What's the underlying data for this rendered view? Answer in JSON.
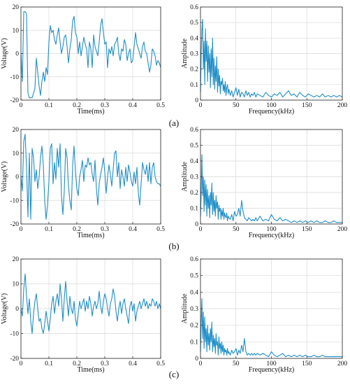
{
  "panel_labels": [
    "(a)",
    "(b)",
    "(c)"
  ],
  "colors": {
    "line": "#1f8ec7",
    "axis": "#222222",
    "grid": "#d9d9d9"
  },
  "chart_data": [
    {
      "type": "line",
      "row": 0,
      "side": "time",
      "xlabel": "Time(ms)",
      "ylabel": "Voltage(V)",
      "xlim": [
        0,
        0.5
      ],
      "ylim": [
        -20,
        20
      ],
      "xticks": [
        0,
        0.1,
        0.2,
        0.3,
        0.4,
        0.5
      ],
      "xtick_labels": [
        "0",
        "0.1",
        "0.2",
        "0.3",
        "0.4",
        "0.5"
      ],
      "yticks": [
        -20,
        -10,
        0,
        10,
        20
      ],
      "ytick_labels": [
        "-20",
        "-10",
        "0",
        "10",
        "20"
      ],
      "grid": true,
      "x": [
        0,
        0.005,
        0.01,
        0.015,
        0.02,
        0.025,
        0.03,
        0.04,
        0.05,
        0.055,
        0.06,
        0.065,
        0.07,
        0.075,
        0.08,
        0.085,
        0.09,
        0.095,
        0.1,
        0.105,
        0.11,
        0.115,
        0.12,
        0.125,
        0.13,
        0.135,
        0.14,
        0.145,
        0.15,
        0.155,
        0.16,
        0.165,
        0.17,
        0.175,
        0.18,
        0.185,
        0.19,
        0.195,
        0.2,
        0.205,
        0.21,
        0.215,
        0.22,
        0.225,
        0.23,
        0.235,
        0.24,
        0.245,
        0.25,
        0.255,
        0.26,
        0.265,
        0.27,
        0.275,
        0.28,
        0.285,
        0.29,
        0.295,
        0.3,
        0.305,
        0.31,
        0.315,
        0.32,
        0.325,
        0.33,
        0.335,
        0.34,
        0.345,
        0.35,
        0.355,
        0.36,
        0.365,
        0.37,
        0.375,
        0.38,
        0.385,
        0.39,
        0.395,
        0.4,
        0.405,
        0.41,
        0.415,
        0.42,
        0.425,
        0.43,
        0.435,
        0.44,
        0.445,
        0.45,
        0.455,
        0.46,
        0.465,
        0.47,
        0.475,
        0.48,
        0.485,
        0.49,
        0.495,
        0.5
      ],
      "y": [
        0,
        -12,
        18,
        18,
        17,
        -17,
        -19,
        -19,
        -15,
        -2,
        -8,
        -14,
        -18,
        -12,
        -8,
        -12,
        -6,
        -9,
        5,
        12,
        9,
        10,
        6,
        4,
        8,
        11,
        5,
        0,
        3,
        7,
        8,
        3,
        -4,
        2,
        6,
        14,
        16,
        9,
        7,
        0,
        5,
        -1,
        3,
        7,
        4,
        2,
        -6,
        5,
        2,
        -6,
        8,
        3,
        1,
        -1,
        5,
        12,
        15,
        9,
        4,
        5,
        -6,
        2,
        0,
        3,
        -1,
        4,
        5,
        7,
        0,
        -3,
        2,
        1,
        6,
        4,
        -3,
        0,
        2,
        -4,
        -3,
        3,
        9,
        4,
        2,
        0,
        -2,
        3,
        5,
        1,
        0,
        -4,
        -8,
        -5,
        2,
        1,
        -1,
        -5,
        -3,
        -4,
        -6
      ]
    },
    {
      "type": "line",
      "row": 0,
      "side": "freq",
      "xlabel": "Frequency(kHz)",
      "ylabel": "Amplitude",
      "xlim": [
        0,
        200
      ],
      "ylim": [
        0,
        0.6
      ],
      "xticks": [
        0,
        50,
        100,
        150,
        200
      ],
      "xtick_labels": [
        "0",
        "50",
        "100",
        "150",
        "200"
      ],
      "yticks": [
        0,
        0.1,
        0.2,
        0.3,
        0.4,
        0.5,
        0.6
      ],
      "ytick_labels": [
        "0",
        "0.1",
        "0.2",
        "0.3",
        "0.4",
        "0.5",
        "0.6"
      ],
      "grid": true,
      "x": [
        0,
        1,
        2,
        3,
        4,
        5,
        6,
        7,
        8,
        9,
        10,
        11,
        12,
        13,
        14,
        15,
        16,
        17,
        18,
        19,
        20,
        21,
        22,
        23,
        24,
        25,
        26,
        27,
        28,
        29,
        30,
        31,
        32,
        33,
        34,
        35,
        36,
        37,
        38,
        39,
        40,
        42,
        44,
        46,
        48,
        50,
        52,
        54,
        56,
        58,
        60,
        62,
        64,
        66,
        68,
        70,
        72,
        74,
        76,
        78,
        80,
        84,
        88,
        92,
        96,
        100,
        104,
        108,
        112,
        116,
        120,
        124,
        128,
        132,
        136,
        140,
        144,
        148,
        152,
        156,
        160,
        164,
        168,
        172,
        176,
        180,
        184,
        188,
        192,
        196,
        200
      ],
      "y": [
        0.05,
        0.3,
        0.45,
        0.52,
        0.2,
        0.38,
        0.1,
        0.46,
        0.25,
        0.38,
        0.12,
        0.35,
        0.18,
        0.3,
        0.08,
        0.33,
        0.15,
        0.4,
        0.1,
        0.27,
        0.07,
        0.22,
        0.12,
        0.28,
        0.05,
        0.2,
        0.09,
        0.16,
        0.04,
        0.12,
        0.1,
        0.14,
        0.06,
        0.1,
        0.05,
        0.12,
        0.03,
        0.08,
        0.1,
        0.04,
        0.07,
        0.03,
        0.06,
        0.02,
        0.05,
        0.08,
        0.03,
        0.07,
        0.02,
        0.05,
        0.04,
        0.02,
        0.06,
        0.03,
        0.05,
        0.02,
        0.04,
        0.03,
        0.05,
        0.02,
        0.04,
        0.03,
        0.02,
        0.05,
        0.03,
        0.02,
        0.04,
        0.03,
        0.05,
        0.02,
        0.04,
        0.06,
        0.03,
        0.04,
        0.02,
        0.05,
        0.03,
        0.02,
        0.04,
        0.03,
        0.02,
        0.03,
        0.02,
        0.04,
        0.02,
        0.03,
        0.02,
        0.03,
        0.02,
        0.03,
        0.02
      ]
    },
    {
      "type": "line",
      "row": 1,
      "side": "time",
      "xlabel": "Time(ms)",
      "ylabel": "Voltage(V)",
      "xlim": [
        0,
        0.5
      ],
      "ylim": [
        -20,
        20
      ],
      "xticks": [
        0,
        0.1,
        0.2,
        0.3,
        0.4,
        0.5
      ],
      "xtick_labels": [
        "0",
        "0.1",
        "0.2",
        "0.3",
        "0.4",
        "0.5"
      ],
      "yticks": [
        -20,
        -10,
        0,
        10,
        20
      ],
      "ytick_labels": [
        "-20",
        "-10",
        "0",
        "10",
        "20"
      ],
      "grid": true,
      "x": [
        0,
        0.005,
        0.01,
        0.015,
        0.02,
        0.025,
        0.03,
        0.035,
        0.04,
        0.045,
        0.05,
        0.055,
        0.06,
        0.065,
        0.07,
        0.075,
        0.08,
        0.085,
        0.09,
        0.095,
        0.1,
        0.105,
        0.11,
        0.115,
        0.12,
        0.125,
        0.13,
        0.135,
        0.14,
        0.145,
        0.15,
        0.155,
        0.16,
        0.165,
        0.17,
        0.175,
        0.18,
        0.185,
        0.19,
        0.195,
        0.2,
        0.205,
        0.21,
        0.215,
        0.22,
        0.225,
        0.23,
        0.235,
        0.24,
        0.245,
        0.25,
        0.255,
        0.26,
        0.265,
        0.27,
        0.275,
        0.28,
        0.285,
        0.29,
        0.295,
        0.3,
        0.305,
        0.31,
        0.315,
        0.32,
        0.325,
        0.33,
        0.335,
        0.34,
        0.345,
        0.35,
        0.355,
        0.36,
        0.365,
        0.37,
        0.375,
        0.38,
        0.385,
        0.39,
        0.395,
        0.4,
        0.405,
        0.41,
        0.415,
        0.42,
        0.425,
        0.43,
        0.435,
        0.44,
        0.445,
        0.45,
        0.455,
        0.46,
        0.465,
        0.47,
        0.475,
        0.48,
        0.485,
        0.49,
        0.495,
        0.5
      ],
      "y": [
        0,
        -6,
        15,
        18,
        4,
        -17,
        10,
        -18,
        12,
        8,
        -2,
        3,
        -5,
        0,
        8,
        13,
        5,
        -10,
        -18,
        -12,
        -2,
        12,
        14,
        -3,
        6,
        -1,
        12,
        4,
        14,
        -8,
        -16,
        -6,
        12,
        8,
        -4,
        -10,
        -14,
        5,
        13,
        2,
        -5,
        -8,
        0,
        3,
        7,
        -2,
        5,
        4,
        8,
        5,
        6,
        1,
        -2,
        7,
        -5,
        -12,
        -3,
        1,
        4,
        8,
        2,
        -7,
        0,
        5,
        1,
        -4,
        3,
        10,
        11,
        0,
        6,
        -5,
        3,
        0,
        -4,
        4,
        -2,
        5,
        2,
        -2,
        -4,
        2,
        -3,
        4,
        -7,
        -12,
        -3,
        6,
        3,
        1,
        5,
        -2,
        6,
        -3,
        4,
        6,
        0,
        -2,
        -3,
        -3,
        -4
      ]
    },
    {
      "type": "line",
      "row": 1,
      "side": "freq",
      "xlabel": "Frequency(kHz)",
      "ylabel": "Amplitude",
      "xlim": [
        0,
        200
      ],
      "ylim": [
        0,
        0.6
      ],
      "xticks": [
        0,
        50,
        100,
        150,
        200
      ],
      "xtick_labels": [
        "0",
        "50",
        "100",
        "150",
        "200"
      ],
      "yticks": [
        0,
        0.1,
        0.2,
        0.3,
        0.4,
        0.5,
        0.6
      ],
      "ytick_labels": [
        "0",
        "0.1",
        "0.2",
        "0.3",
        "0.4",
        "0.5",
        "0.6"
      ],
      "grid": true,
      "x": [
        0,
        1,
        2,
        3,
        4,
        5,
        6,
        7,
        8,
        9,
        10,
        11,
        12,
        13,
        14,
        15,
        16,
        17,
        18,
        19,
        20,
        21,
        22,
        23,
        24,
        25,
        26,
        27,
        28,
        29,
        30,
        31,
        32,
        33,
        34,
        35,
        36,
        37,
        38,
        39,
        40,
        42,
        44,
        46,
        48,
        50,
        52,
        54,
        56,
        58,
        60,
        62,
        64,
        66,
        68,
        70,
        72,
        74,
        76,
        78,
        80,
        84,
        88,
        92,
        96,
        100,
        104,
        108,
        112,
        116,
        120,
        124,
        128,
        132,
        136,
        140,
        144,
        148,
        152,
        156,
        160,
        164,
        168,
        172,
        176,
        180,
        184,
        188,
        192,
        196,
        200
      ],
      "y": [
        0.05,
        0.2,
        0.44,
        0.18,
        0.3,
        0.08,
        0.28,
        0.12,
        0.25,
        0.05,
        0.22,
        0.1,
        0.18,
        0.04,
        0.2,
        0.12,
        0.26,
        0.06,
        0.2,
        0.08,
        0.15,
        0.05,
        0.18,
        0.1,
        0.14,
        0.03,
        0.12,
        0.08,
        0.1,
        0.03,
        0.09,
        0.05,
        0.1,
        0.03,
        0.07,
        0.05,
        0.04,
        0.07,
        0.02,
        0.05,
        0.04,
        0.03,
        0.06,
        0.02,
        0.08,
        0.05,
        0.06,
        0.1,
        0.05,
        0.15,
        0.08,
        0.04,
        0.03,
        0.02,
        0.04,
        0.03,
        0.02,
        0.03,
        0.02,
        0.04,
        0.02,
        0.05,
        0.02,
        0.03,
        0.02,
        0.06,
        0.03,
        0.02,
        0.04,
        0.02,
        0.03,
        0.02,
        0.01,
        0.02,
        0.01,
        0.02,
        0.01,
        0.02,
        0.01,
        0.02,
        0.01,
        0.02,
        0.01,
        0.01,
        0.02,
        0.01,
        0.01,
        0.02,
        0.01,
        0.01,
        0.01
      ]
    },
    {
      "type": "line",
      "row": 2,
      "side": "time",
      "xlabel": "Time(ms)",
      "ylabel": "Voltage(V)",
      "xlim": [
        0,
        0.5
      ],
      "ylim": [
        -20,
        20
      ],
      "xticks": [
        0,
        0.1,
        0.2,
        0.3,
        0.4,
        0.5
      ],
      "xtick_labels": [
        "0",
        "0.1",
        "0.2",
        "0.3",
        "0.4",
        "0.5"
      ],
      "yticks": [
        -20,
        -10,
        0,
        10,
        20
      ],
      "ytick_labels": [
        "-20",
        "-10",
        "0",
        "10",
        "20"
      ],
      "grid": true,
      "x": [
        0,
        0.005,
        0.01,
        0.015,
        0.02,
        0.025,
        0.03,
        0.035,
        0.04,
        0.045,
        0.05,
        0.055,
        0.06,
        0.065,
        0.07,
        0.075,
        0.08,
        0.085,
        0.09,
        0.095,
        0.1,
        0.105,
        0.11,
        0.115,
        0.12,
        0.125,
        0.13,
        0.135,
        0.14,
        0.145,
        0.15,
        0.155,
        0.16,
        0.165,
        0.17,
        0.175,
        0.18,
        0.185,
        0.19,
        0.195,
        0.2,
        0.205,
        0.21,
        0.215,
        0.22,
        0.225,
        0.23,
        0.235,
        0.24,
        0.245,
        0.25,
        0.255,
        0.26,
        0.265,
        0.27,
        0.275,
        0.28,
        0.285,
        0.29,
        0.295,
        0.3,
        0.305,
        0.31,
        0.315,
        0.32,
        0.325,
        0.33,
        0.335,
        0.34,
        0.345,
        0.35,
        0.355,
        0.36,
        0.365,
        0.37,
        0.375,
        0.38,
        0.385,
        0.39,
        0.395,
        0.4,
        0.405,
        0.41,
        0.415,
        0.42,
        0.425,
        0.43,
        0.435,
        0.44,
        0.445,
        0.45,
        0.455,
        0.46,
        0.465,
        0.47,
        0.475,
        0.48,
        0.485,
        0.49,
        0.495,
        0.5
      ],
      "y": [
        0,
        -3,
        8,
        14,
        5,
        -2,
        4,
        -5,
        -10,
        -2,
        3,
        6,
        0,
        -5,
        -4,
        -8,
        -10,
        -6,
        -1,
        -5,
        -9,
        -4,
        2,
        5,
        -2,
        3,
        6,
        1,
        10,
        4,
        -5,
        4,
        11,
        3,
        -3,
        5,
        0,
        -2,
        3,
        -4,
        -7,
        -2,
        3,
        0,
        2,
        4,
        -1,
        3,
        0,
        5,
        2,
        -3,
        1,
        3,
        0,
        2,
        7,
        1,
        -2,
        3,
        6,
        4,
        0,
        -3,
        2,
        4,
        8,
        5,
        -1,
        -5,
        0,
        3,
        -2,
        2,
        4,
        0,
        -3,
        -6,
        1,
        3,
        -1,
        2,
        -5,
        -1,
        1,
        3,
        0,
        2,
        4,
        1,
        3,
        0,
        2,
        1,
        4,
        3,
        1,
        3,
        0,
        2,
        0
      ]
    },
    {
      "type": "line",
      "row": 2,
      "side": "freq",
      "xlabel": "Frequency(kHz)",
      "ylabel": "Amplitude",
      "xlim": [
        0,
        200
      ],
      "ylim": [
        0,
        0.6
      ],
      "xticks": [
        0,
        50,
        100,
        150,
        200
      ],
      "xtick_labels": [
        "0",
        "50",
        "100",
        "150",
        "200"
      ],
      "yticks": [
        0,
        0.1,
        0.2,
        0.3,
        0.4,
        0.5,
        0.6
      ],
      "ytick_labels": [
        "0",
        "0.1",
        "0.2",
        "0.3",
        "0.4",
        "0.5",
        "0.6"
      ],
      "grid": true,
      "x": [
        0,
        1,
        2,
        3,
        4,
        5,
        6,
        7,
        8,
        9,
        10,
        11,
        12,
        13,
        14,
        15,
        16,
        17,
        18,
        19,
        20,
        21,
        22,
        23,
        24,
        25,
        26,
        27,
        28,
        29,
        30,
        31,
        32,
        33,
        34,
        35,
        36,
        37,
        38,
        39,
        40,
        42,
        44,
        46,
        48,
        50,
        52,
        54,
        56,
        58,
        60,
        62,
        64,
        66,
        68,
        70,
        72,
        74,
        76,
        78,
        80,
        84,
        88,
        92,
        96,
        100,
        104,
        108,
        112,
        116,
        120,
        124,
        128,
        132,
        136,
        140,
        144,
        148,
        152,
        156,
        160,
        164,
        168,
        172,
        176,
        180,
        184,
        188,
        192,
        196,
        200
      ],
      "y": [
        0.04,
        0.22,
        0.36,
        0.12,
        0.28,
        0.06,
        0.25,
        0.1,
        0.18,
        0.04,
        0.2,
        0.08,
        0.15,
        0.05,
        0.18,
        0.1,
        0.22,
        0.04,
        0.14,
        0.07,
        0.12,
        0.03,
        0.15,
        0.08,
        0.1,
        0.02,
        0.13,
        0.06,
        0.09,
        0.03,
        0.1,
        0.04,
        0.08,
        0.02,
        0.06,
        0.04,
        0.05,
        0.02,
        0.06,
        0.03,
        0.04,
        0.02,
        0.05,
        0.03,
        0.04,
        0.06,
        0.02,
        0.05,
        0.03,
        0.08,
        0.04,
        0.12,
        0.04,
        0.02,
        0.03,
        0.02,
        0.03,
        0.02,
        0.03,
        0.02,
        0.03,
        0.02,
        0.03,
        0.02,
        0.01,
        0.04,
        0.02,
        0.01,
        0.02,
        0.03,
        0.01,
        0.02,
        0.01,
        0.02,
        0.01,
        0.02,
        0.01,
        0.02,
        0.01,
        0.01,
        0.02,
        0.01,
        0.01,
        0.02,
        0.01,
        0.01,
        0.01,
        0.01,
        0.01,
        0.01,
        0.01
      ]
    }
  ]
}
